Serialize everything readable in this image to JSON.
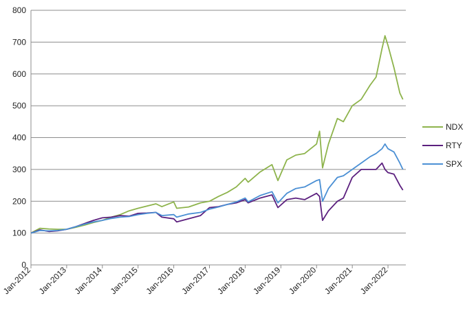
{
  "chart_data": {
    "type": "line",
    "title": "",
    "xlabel": "",
    "ylabel": "",
    "ylim": [
      0,
      800
    ],
    "yticks": [
      "0",
      "100",
      "200",
      "300",
      "400",
      "500",
      "600",
      "700",
      "800"
    ],
    "xticks": [
      "Jan-2012",
      "Jan-2013",
      "Jan-2014",
      "Jan-2015",
      "Jan-2016",
      "Jan-2017",
      "Jan-2018",
      "Jan-2019",
      "Jan-2020",
      "Jan-2021",
      "Jan-2022"
    ],
    "x": [
      "2012-01",
      "2012-04",
      "2012-07",
      "2012-10",
      "2013-01",
      "2013-04",
      "2013-07",
      "2013-10",
      "2014-01",
      "2014-04",
      "2014-07",
      "2014-10",
      "2015-01",
      "2015-04",
      "2015-07",
      "2015-09",
      "2016-01",
      "2016-02",
      "2016-06",
      "2016-10",
      "2017-01",
      "2017-04",
      "2017-07",
      "2017-10",
      "2018-01",
      "2018-02",
      "2018-06",
      "2018-10",
      "2018-12",
      "2019-03",
      "2019-06",
      "2019-09",
      "2020-01",
      "2020-02",
      "2020-03",
      "2020-05",
      "2020-08",
      "2020-10",
      "2021-01",
      "2021-04",
      "2021-07",
      "2021-09",
      "2021-11",
      "2021-12",
      "2022-01",
      "2022-03",
      "2022-05",
      "2022-06"
    ],
    "grid": true,
    "legend": "right",
    "series": [
      {
        "name": "NDX",
        "color": "#8db34b",
        "values": [
          100,
          115,
          113,
          112,
          112,
          118,
          125,
          133,
          140,
          150,
          158,
          170,
          178,
          185,
          192,
          183,
          198,
          178,
          182,
          195,
          200,
          215,
          228,
          245,
          272,
          260,
          292,
          315,
          265,
          330,
          345,
          350,
          380,
          420,
          305,
          380,
          460,
          450,
          500,
          520,
          565,
          590,
          680,
          720,
          690,
          620,
          540,
          520
        ]
      },
      {
        "name": "RTY",
        "color": "#5b1f7e",
        "values": [
          100,
          110,
          105,
          107,
          112,
          120,
          130,
          140,
          148,
          150,
          155,
          153,
          162,
          163,
          165,
          150,
          145,
          135,
          145,
          155,
          180,
          183,
          190,
          195,
          205,
          195,
          210,
          220,
          180,
          205,
          210,
          205,
          225,
          215,
          140,
          170,
          200,
          210,
          275,
          300,
          300,
          300,
          320,
          300,
          290,
          285,
          250,
          235
        ]
      },
      {
        "name": "SPX",
        "color": "#4a8fd4",
        "values": [
          100,
          108,
          107,
          108,
          112,
          120,
          128,
          135,
          140,
          146,
          150,
          152,
          158,
          162,
          165,
          155,
          158,
          150,
          160,
          165,
          175,
          182,
          190,
          198,
          210,
          198,
          218,
          230,
          195,
          225,
          240,
          245,
          265,
          268,
          200,
          240,
          275,
          280,
          300,
          320,
          340,
          350,
          365,
          380,
          365,
          355,
          320,
          300
        ]
      }
    ]
  }
}
